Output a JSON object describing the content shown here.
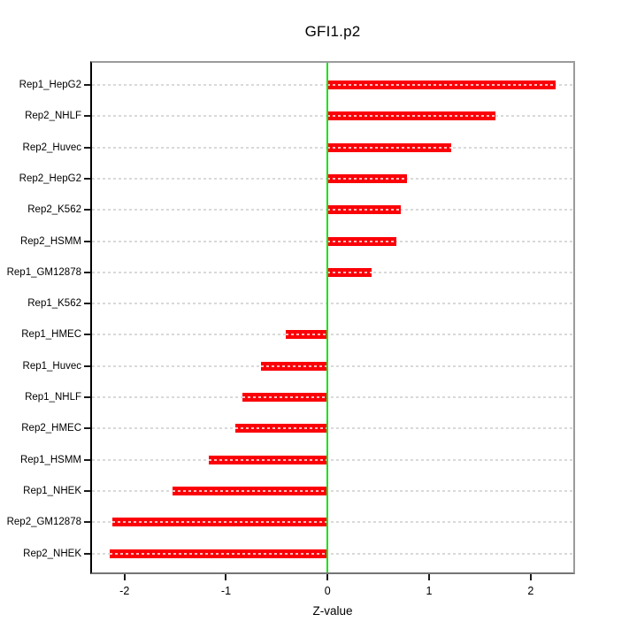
{
  "chart_data": {
    "type": "bar",
    "orientation": "horizontal",
    "title": "GFI1.p2",
    "xlabel": "Z-value",
    "ylabel": "",
    "categories": [
      "Rep1_HepG2",
      "Rep2_NHLF",
      "Rep2_Huvec",
      "Rep2_HepG2",
      "Rep2_K562",
      "Rep2_HSMM",
      "Rep1_GM12878",
      "Rep1_K562",
      "Rep1_HMEC",
      "Rep1_Huvec",
      "Rep1_NHLF",
      "Rep2_HMEC",
      "Rep1_HSMM",
      "Rep1_NHEK",
      "Rep2_GM12878",
      "Rep2_NHEK"
    ],
    "values": [
      2.25,
      1.65,
      1.22,
      0.78,
      0.72,
      0.68,
      0.43,
      0.0,
      -0.41,
      -0.66,
      -0.84,
      -0.91,
      -1.17,
      -1.53,
      -2.12,
      -2.15
    ],
    "xticks": [
      "-2",
      "-1",
      "0",
      "1",
      "2"
    ],
    "xtick_values": [
      -2,
      -1,
      0,
      1,
      2
    ],
    "xlim": [
      -2.32,
      2.42
    ],
    "legend_position": "none",
    "grid": "dashed horizontal line per category",
    "colors": {
      "bar": "#fb0007",
      "zero_line": "#18e418",
      "gridline": "#d9d9d9",
      "box_border": "#9b9b9b",
      "left_axis": "#000000",
      "text": "#000000",
      "background": "#ffffff"
    }
  }
}
